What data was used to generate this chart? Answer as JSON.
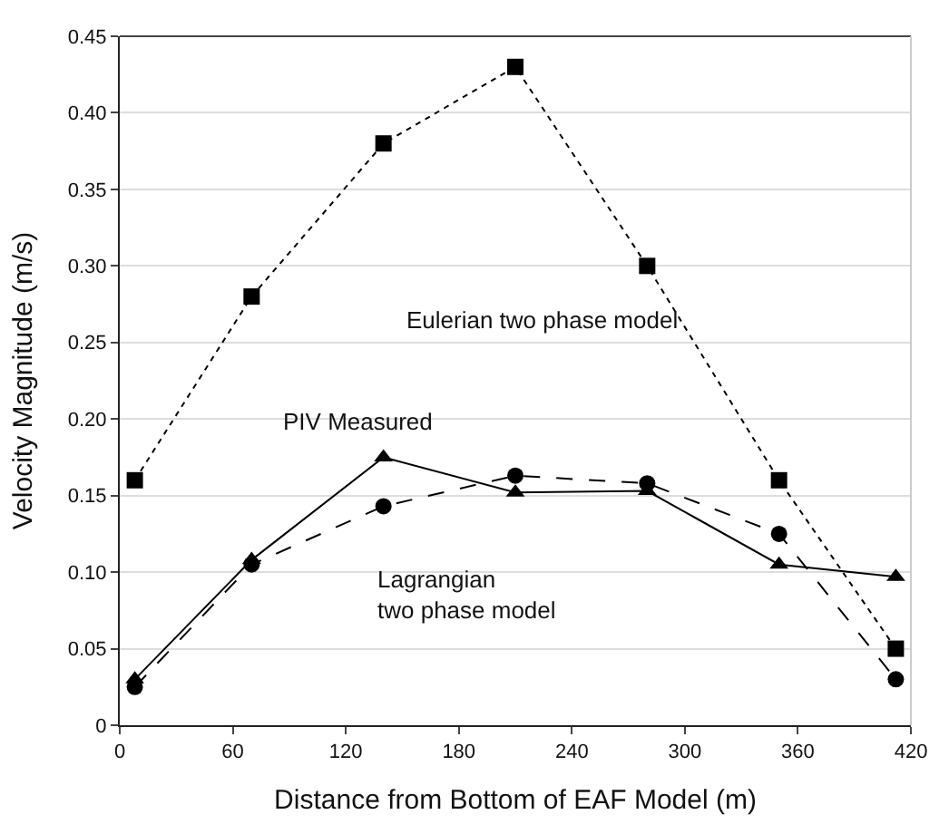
{
  "chart_data": {
    "type": "line",
    "xlabel": "Distance from Bottom of EAF Model (m)",
    "ylabel": "Velocity Magnitude (m/s)",
    "x": [
      8,
      70,
      140,
      210,
      280,
      350,
      412
    ],
    "series": [
      {
        "name": "Eulerian two phase model",
        "color": "#000000",
        "marker": "square",
        "line_style": "dotted",
        "values": [
          0.16,
          0.28,
          0.38,
          0.43,
          0.3,
          0.16,
          0.05
        ]
      },
      {
        "name": "PIV Measured",
        "color": "#000000",
        "marker": "triangle",
        "line_style": "solid",
        "values": [
          0.03,
          0.108,
          0.175,
          0.152,
          0.153,
          0.105,
          0.097
        ]
      },
      {
        "name": "Lagrangian\ntwo phase model",
        "color": "#000000",
        "marker": "circle",
        "line_style": "dashed",
        "values": [
          0.025,
          0.105,
          0.143,
          0.163,
          0.158,
          0.125,
          0.03
        ]
      }
    ],
    "xlim": [
      0,
      420
    ],
    "xticks": [
      0,
      60,
      120,
      180,
      240,
      300,
      360,
      420
    ],
    "ylim": [
      0,
      0.45
    ],
    "yticks": [
      0,
      0.05,
      {
        "value": 0.1,
        "label": "0.10"
      },
      0.15,
      {
        "value": 0.2,
        "label": "0.20"
      },
      0.25,
      {
        "value": 0.3,
        "label": "0.30"
      },
      0.35,
      {
        "value": 0.4,
        "label": "0.40"
      },
      0.45
    ],
    "grid": "y",
    "legend": false
  }
}
